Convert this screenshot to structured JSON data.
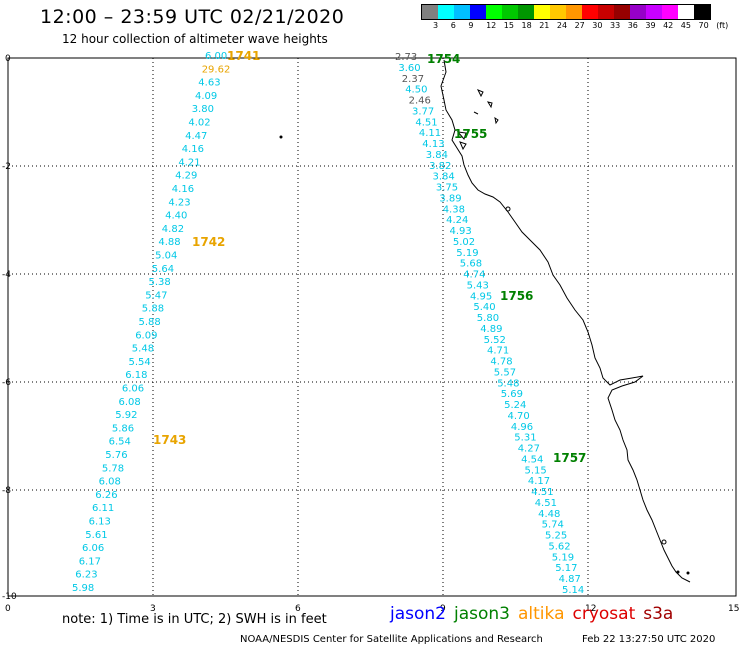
{
  "header": {
    "title": "12:00 – 23:59 UTC 02/21/2020",
    "subtitle": "12 hour collection of altimeter wave heights"
  },
  "colorbar": {
    "colors": [
      "#808080",
      "#00ffff",
      "#00bfff",
      "#0000ff",
      "#00ff00",
      "#00c800",
      "#009600",
      "#ffff00",
      "#ffc800",
      "#ff9600",
      "#ff0000",
      "#c80000",
      "#960000",
      "#9600c8",
      "#c800ff",
      "#ff00ff",
      "#ffffff",
      "#000000"
    ],
    "ticks": [
      "3",
      "6",
      "9",
      "12",
      "15",
      "18",
      "21",
      "24",
      "27",
      "30",
      "33",
      "36",
      "39",
      "42",
      "45",
      "70",
      "(ft)"
    ]
  },
  "axes": {
    "x_ticks": [
      "0",
      "3",
      "6",
      "9",
      "12",
      "15"
    ],
    "y_ticks": [
      "0",
      "-2",
      "-4",
      "-6",
      "-8",
      "-10"
    ]
  },
  "tracks": [
    {
      "name": "jason2-west",
      "values": [
        "6.00",
        "29.62",
        "4.63",
        "4.09",
        "3.80",
        "4.02",
        "4.47",
        "4.16",
        "4.21",
        "4.29",
        "4.16",
        "4.23",
        "4.40",
        "4.82",
        "4.88",
        "5.04",
        "5.64",
        "5.38",
        "5.47",
        "5.88",
        "5.88",
        "6.09",
        "5.48",
        "5.54",
        "6.18",
        "6.06",
        "6.08",
        "5.92",
        "5.86",
        "6.54",
        "5.76",
        "5.78",
        "6.08",
        "6.26",
        "6.11",
        "6.13",
        "5.61",
        "6.06",
        "6.17",
        "6.23",
        "5.98"
      ],
      "colors": {
        "1": "#e8a400"
      }
    },
    {
      "name": "jason2-east",
      "values": [
        "2.73",
        "3.60",
        "2.37",
        "4.50",
        "2.46",
        "3.77",
        "4.51",
        "4.11",
        "4.13",
        "3.84",
        "3.82",
        "3.84",
        "3.75",
        "3.89",
        "4.38",
        "4.24",
        "4.93",
        "5.02",
        "5.19",
        "5.68",
        "4.74",
        "5.43",
        "4.95",
        "5.40",
        "5.80",
        "4.89",
        "5.52",
        "4.71",
        "4.78",
        "5.57",
        "5.48",
        "5.69",
        "5.24",
        "4.70",
        "4.96",
        "5.31",
        "4.27",
        "4.54",
        "5.15",
        "4.17",
        "4.51",
        "4.51",
        "4.48",
        "5.74",
        "5.25",
        "5.62",
        "5.19",
        "5.17",
        "4.87",
        "5.14"
      ],
      "colors": {
        "0": "#555555",
        "2": "#555555",
        "4": "#555555"
      }
    }
  ],
  "passes": [
    {
      "id": "1741",
      "color": "#e8a400"
    },
    {
      "id": "1742",
      "color": "#e8a400"
    },
    {
      "id": "1743",
      "color": "#e8a400"
    },
    {
      "id": "1754",
      "color": "#008000"
    },
    {
      "id": "1755",
      "color": "#008000"
    },
    {
      "id": "1756",
      "color": "#008000"
    },
    {
      "id": "1757",
      "color": "#008000"
    }
  ],
  "footer": {
    "note": "note: 1) Time is in UTC; 2) SWH is in feet",
    "satellites": [
      {
        "name": "jason2",
        "color": "#0000ff"
      },
      {
        "name": "jason3",
        "color": "#008000"
      },
      {
        "name": "altika",
        "color": "#ff9600"
      },
      {
        "name": "cryosat",
        "color": "#dd0000"
      },
      {
        "name": "s3a",
        "color": "#a00000"
      }
    ],
    "credit": "NOAA/NESDIS Center for Satellite Applications and Research",
    "timestamp": "Feb 22 13:27:50 UTC 2020"
  }
}
